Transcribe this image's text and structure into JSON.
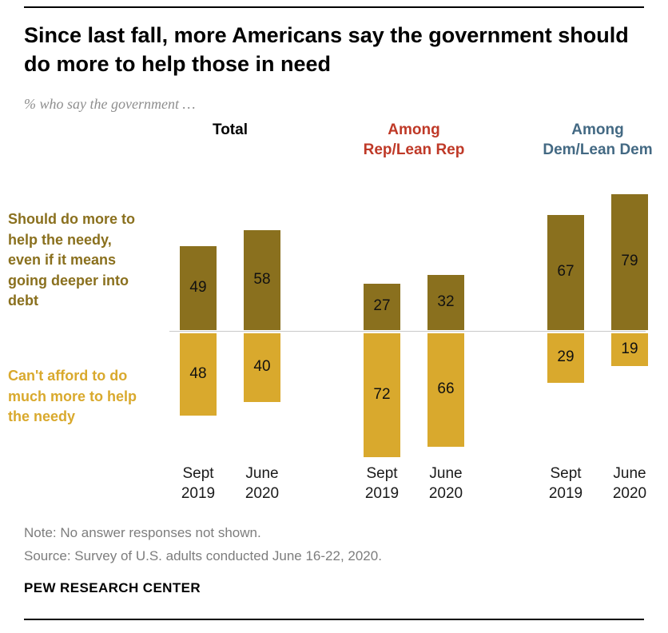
{
  "header": {
    "title": "Since last fall, more Americans say the government should do more to help those in need",
    "subtitle": "% who say the government …"
  },
  "chart_data": {
    "type": "bar",
    "orientation": "diverging-vertical",
    "unit": "%",
    "ylim": [
      -100,
      100
    ],
    "grid": false,
    "series_labels": {
      "do_more": "Should do more to help the needy, even if it means going deeper into debt",
      "cant_afford": "Can't afford to do much more to help the needy"
    },
    "colors": {
      "do_more": "#8a701e",
      "cant_afford": "#d9a92d",
      "baseline": "#c9c9c9",
      "total_header": "#000000",
      "rep_header": "#bf3927",
      "dem_header": "#436983"
    },
    "groups": [
      {
        "id": "total",
        "header_lines": [
          "Total"
        ],
        "header_color": "#000000",
        "bars": [
          {
            "period": "Sept 2019",
            "period_lines": [
              "Sept",
              "2019"
            ],
            "do_more": 49,
            "cant_afford": 48
          },
          {
            "period": "June 2020",
            "period_lines": [
              "June",
              "2020"
            ],
            "do_more": 58,
            "cant_afford": 40
          }
        ]
      },
      {
        "id": "rep",
        "header_lines": [
          "Among",
          "Rep/Lean Rep"
        ],
        "header_color": "#bf3927",
        "bars": [
          {
            "period": "Sept 2019",
            "period_lines": [
              "Sept",
              "2019"
            ],
            "do_more": 27,
            "cant_afford": 72
          },
          {
            "period": "June 2020",
            "period_lines": [
              "June",
              "2020"
            ],
            "do_more": 32,
            "cant_afford": 66
          }
        ]
      },
      {
        "id": "dem",
        "header_lines": [
          "Among",
          "Dem/Lean Dem"
        ],
        "header_color": "#436983",
        "bars": [
          {
            "period": "Sept 2019",
            "period_lines": [
              "Sept",
              "2019"
            ],
            "do_more": 67,
            "cant_afford": 29
          },
          {
            "period": "June 2020",
            "period_lines": [
              "June",
              "2020"
            ],
            "do_more": 79,
            "cant_afford": 19
          }
        ]
      }
    ]
  },
  "footer": {
    "note": "Note: No answer responses not shown.",
    "source": "Source: Survey of U.S. adults conducted June 16-22, 2020.",
    "brand": "PEW RESEARCH CENTER"
  }
}
